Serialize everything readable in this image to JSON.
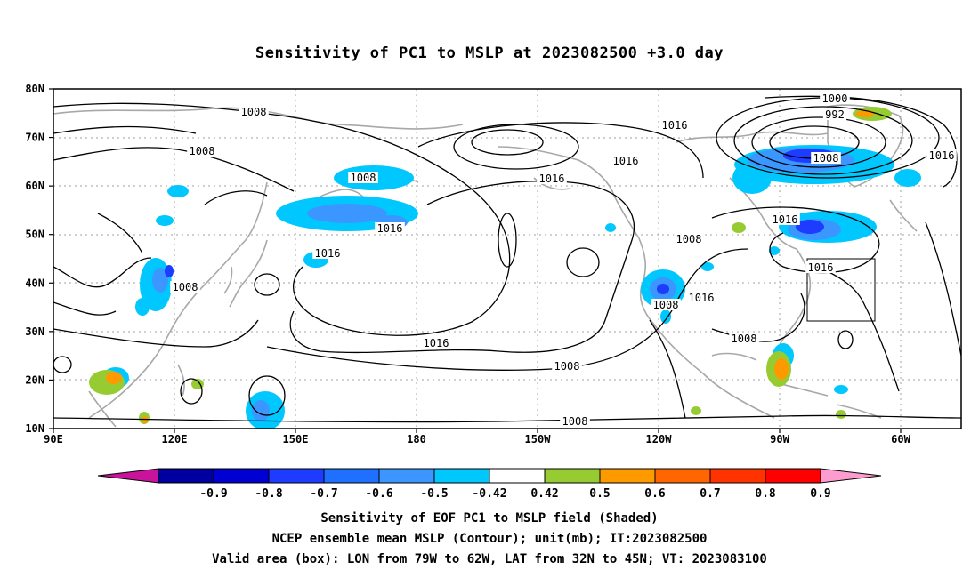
{
  "title": "Sensitivity of PC1 to MSLP at 2023082500 +3.0 day",
  "map": {
    "lat_ticks": [
      "80N",
      "70N",
      "60N",
      "50N",
      "40N",
      "30N",
      "20N",
      "10N"
    ],
    "lon_ticks": [
      "90E",
      "120E",
      "150E",
      "180",
      "150W",
      "120W",
      "90W",
      "60W"
    ],
    "valid_box": {
      "lon_from": "79W",
      "lon_to": "62W",
      "lat_from": "32N",
      "lat_to": "45N"
    },
    "contour_labels": [
      "1008",
      "1000",
      "992",
      "1016",
      "1008",
      "1016",
      "1008",
      "1016",
      "1016",
      "1008",
      "1016",
      "1016",
      "1008",
      "1016",
      "1016",
      "1008",
      "1016",
      "1008",
      "1016",
      "1008",
      "1008",
      "1008"
    ]
  },
  "colorbar": {
    "labels": [
      "-0.9",
      "-0.8",
      "-0.7",
      "-0.6",
      "-0.5",
      "-0.42",
      "0.42",
      "0.5",
      "0.6",
      "0.7",
      "0.8",
      "0.9"
    ],
    "colors": [
      "#c8149b",
      "#0000a0",
      "#0000d2",
      "#1e3cff",
      "#2070ff",
      "#3b96ff",
      "#00c8ff",
      "#ffffff",
      "#96cc32",
      "#ff9900",
      "#ff6600",
      "#ff3300",
      "#ff0000",
      "#ff9ccf"
    ]
  },
  "captions": [
    "Sensitivity of EOF PC1 to MSLP field (Shaded)",
    "NCEP ensemble mean MSLP (Contour); unit(mb); IT:2023082500",
    "Valid area (box): LON from 79W to 62W, LAT from 32N to 45N; VT: 2023083100"
  ]
}
